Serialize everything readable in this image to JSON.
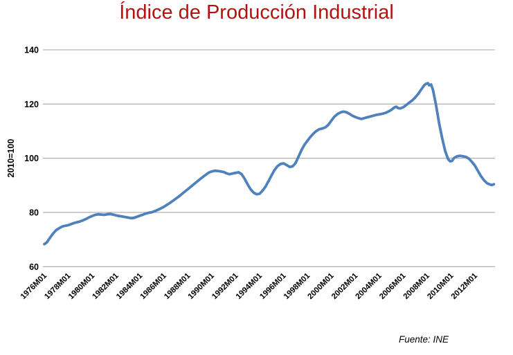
{
  "colors": {
    "title": "#B5120F",
    "line": "#4F81BD",
    "grid": "#A6A6A6",
    "axis_text": "#000000",
    "background": "#FFFFFF"
  },
  "chart_data": {
    "type": "line",
    "title": "Índice de Producción Industrial",
    "source_note": "Fuente: INE",
    "ylabel": "2010=100",
    "xlabel": "",
    "ylim": [
      60,
      140
    ],
    "yticks": [
      "60",
      "80",
      "100",
      "120",
      "140"
    ],
    "ytick_values": [
      60,
      80,
      100,
      120,
      140
    ],
    "xtick_labels": [
      "1976M01",
      "1978M01",
      "1980M01",
      "1982M01",
      "1984M01",
      "1986M01",
      "1988M01",
      "1990M01",
      "1992M01",
      "1994M01",
      "1996M01",
      "1998M01",
      "2000M01",
      "2002M01",
      "2004M01",
      "2006M01",
      "2008M01",
      "2010M01",
      "2012M01"
    ],
    "xtick_years": [
      1976,
      1978,
      1980,
      1982,
      1984,
      1986,
      1988,
      1990,
      1992,
      1994,
      1996,
      1998,
      2000,
      2002,
      2004,
      2006,
      2008,
      2010,
      2012
    ],
    "x_range_years": [
      1976.0,
      2013.67
    ],
    "grid": "horizontal",
    "legend": "none",
    "series": [
      {
        "name": "Índice de Producción Industrial (2010=100)",
        "points": [
          [
            1976.0,
            68.3
          ],
          [
            1976.17,
            68.8
          ],
          [
            1976.25,
            69.2
          ],
          [
            1976.5,
            70.8
          ],
          [
            1976.75,
            72.3
          ],
          [
            1977.0,
            73.5
          ],
          [
            1977.25,
            74.2
          ],
          [
            1977.5,
            74.8
          ],
          [
            1977.75,
            75.1
          ],
          [
            1978.0,
            75.3
          ],
          [
            1978.25,
            75.7
          ],
          [
            1978.5,
            76.1
          ],
          [
            1978.75,
            76.4
          ],
          [
            1979.0,
            76.7
          ],
          [
            1979.25,
            77.1
          ],
          [
            1979.5,
            77.6
          ],
          [
            1979.75,
            78.2
          ],
          [
            1980.0,
            78.7
          ],
          [
            1980.25,
            79.1
          ],
          [
            1980.5,
            79.3
          ],
          [
            1980.75,
            79.2
          ],
          [
            1981.0,
            79.1
          ],
          [
            1981.25,
            79.3
          ],
          [
            1981.5,
            79.4
          ],
          [
            1981.75,
            79.2
          ],
          [
            1982.0,
            78.9
          ],
          [
            1982.25,
            78.7
          ],
          [
            1982.5,
            78.5
          ],
          [
            1982.75,
            78.3
          ],
          [
            1983.0,
            78.1
          ],
          [
            1983.25,
            77.9
          ],
          [
            1983.5,
            78.0
          ],
          [
            1983.75,
            78.4
          ],
          [
            1984.0,
            78.8
          ],
          [
            1984.25,
            79.2
          ],
          [
            1984.5,
            79.6
          ],
          [
            1984.75,
            79.9
          ],
          [
            1985.0,
            80.1
          ],
          [
            1985.25,
            80.5
          ],
          [
            1985.5,
            81.0
          ],
          [
            1985.75,
            81.5
          ],
          [
            1986.0,
            82.1
          ],
          [
            1986.25,
            82.8
          ],
          [
            1986.5,
            83.5
          ],
          [
            1986.75,
            84.3
          ],
          [
            1987.0,
            85.1
          ],
          [
            1987.25,
            85.9
          ],
          [
            1987.5,
            86.8
          ],
          [
            1987.75,
            87.7
          ],
          [
            1988.0,
            88.6
          ],
          [
            1988.25,
            89.5
          ],
          [
            1988.5,
            90.4
          ],
          [
            1988.75,
            91.3
          ],
          [
            1989.0,
            92.2
          ],
          [
            1989.25,
            93.1
          ],
          [
            1989.5,
            93.9
          ],
          [
            1989.75,
            94.7
          ],
          [
            1990.0,
            95.1
          ],
          [
            1990.25,
            95.4
          ],
          [
            1990.5,
            95.3
          ],
          [
            1990.75,
            95.1
          ],
          [
            1991.0,
            94.9
          ],
          [
            1991.25,
            94.4
          ],
          [
            1991.5,
            94.1
          ],
          [
            1991.75,
            94.4
          ],
          [
            1992.0,
            94.6
          ],
          [
            1992.25,
            94.8
          ],
          [
            1992.5,
            94.1
          ],
          [
            1992.75,
            92.4
          ],
          [
            1993.0,
            90.3
          ],
          [
            1993.25,
            88.5
          ],
          [
            1993.5,
            87.3
          ],
          [
            1993.75,
            86.7
          ],
          [
            1994.0,
            86.9
          ],
          [
            1994.25,
            88.1
          ],
          [
            1994.5,
            89.6
          ],
          [
            1994.75,
            91.6
          ],
          [
            1995.0,
            93.7
          ],
          [
            1995.25,
            95.7
          ],
          [
            1995.5,
            97.1
          ],
          [
            1995.75,
            97.9
          ],
          [
            1996.0,
            98.1
          ],
          [
            1996.25,
            97.5
          ],
          [
            1996.5,
            96.8
          ],
          [
            1996.75,
            97.0
          ],
          [
            1997.0,
            98.2
          ],
          [
            1997.25,
            100.6
          ],
          [
            1997.5,
            103.0
          ],
          [
            1997.75,
            105.0
          ],
          [
            1998.0,
            106.5
          ],
          [
            1998.25,
            107.9
          ],
          [
            1998.5,
            109.1
          ],
          [
            1998.75,
            110.1
          ],
          [
            1999.0,
            110.7
          ],
          [
            1999.25,
            111.0
          ],
          [
            1999.5,
            111.4
          ],
          [
            1999.75,
            112.4
          ],
          [
            2000.0,
            113.9
          ],
          [
            2000.25,
            115.3
          ],
          [
            2000.5,
            116.3
          ],
          [
            2000.75,
            116.9
          ],
          [
            2001.0,
            117.2
          ],
          [
            2001.25,
            117.0
          ],
          [
            2001.5,
            116.4
          ],
          [
            2001.75,
            115.7
          ],
          [
            2002.0,
            115.2
          ],
          [
            2002.25,
            114.8
          ],
          [
            2002.5,
            114.5
          ],
          [
            2002.75,
            114.8
          ],
          [
            2003.0,
            115.1
          ],
          [
            2003.25,
            115.4
          ],
          [
            2003.5,
            115.7
          ],
          [
            2003.75,
            116.0
          ],
          [
            2004.0,
            116.2
          ],
          [
            2004.25,
            116.4
          ],
          [
            2004.5,
            116.7
          ],
          [
            2004.75,
            117.2
          ],
          [
            2005.0,
            117.8
          ],
          [
            2005.25,
            118.7
          ],
          [
            2005.42,
            119.0
          ],
          [
            2005.58,
            118.5
          ],
          [
            2005.75,
            118.4
          ],
          [
            2006.0,
            118.8
          ],
          [
            2006.25,
            119.6
          ],
          [
            2006.5,
            120.5
          ],
          [
            2006.75,
            121.3
          ],
          [
            2007.0,
            122.4
          ],
          [
            2007.25,
            123.7
          ],
          [
            2007.5,
            125.3
          ],
          [
            2007.75,
            126.9
          ],
          [
            2007.92,
            127.5
          ],
          [
            2008.08,
            127.7
          ],
          [
            2008.17,
            126.9
          ],
          [
            2008.33,
            127.2
          ],
          [
            2008.5,
            125.0
          ],
          [
            2008.75,
            119.5
          ],
          [
            2009.0,
            113.0
          ],
          [
            2009.25,
            107.5
          ],
          [
            2009.5,
            102.8
          ],
          [
            2009.75,
            99.7
          ],
          [
            2009.92,
            98.9
          ],
          [
            2010.08,
            99.0
          ],
          [
            2010.25,
            100.1
          ],
          [
            2010.5,
            100.7
          ],
          [
            2010.75,
            100.9
          ],
          [
            2011.0,
            100.7
          ],
          [
            2011.25,
            100.5
          ],
          [
            2011.5,
            99.8
          ],
          [
            2011.75,
            98.6
          ],
          [
            2012.0,
            97.2
          ],
          [
            2012.25,
            95.3
          ],
          [
            2012.5,
            93.4
          ],
          [
            2012.75,
            91.9
          ],
          [
            2013.0,
            90.8
          ],
          [
            2013.25,
            90.3
          ],
          [
            2013.42,
            90.1
          ],
          [
            2013.58,
            90.4
          ]
        ]
      }
    ]
  }
}
